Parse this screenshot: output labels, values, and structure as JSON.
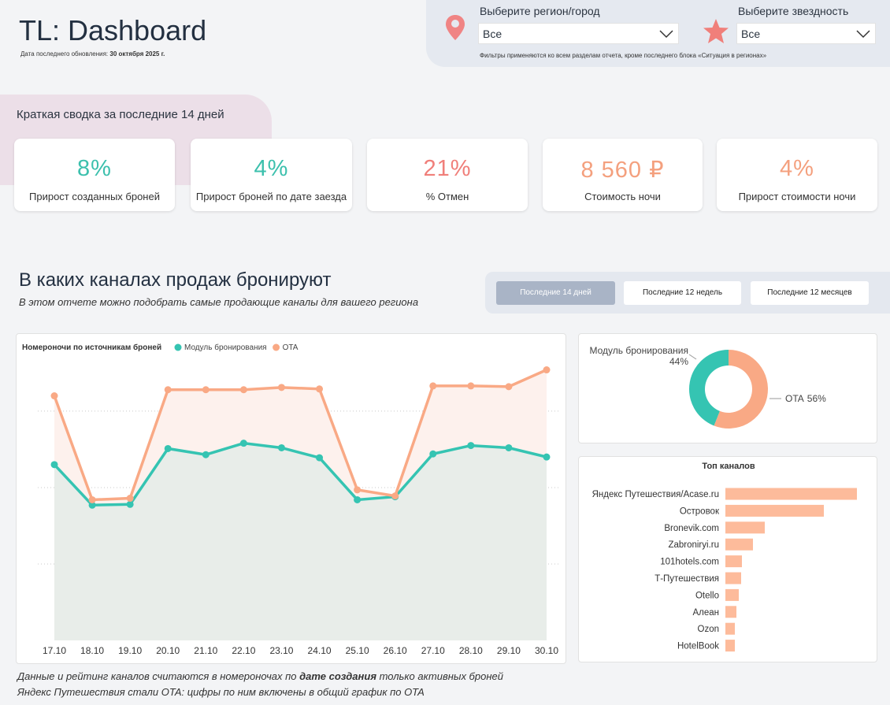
{
  "header": {
    "title": "TL: Dashboard",
    "updated_label": "Дата последнего обновления:",
    "updated_date": "30 октября 2025 г."
  },
  "filters": {
    "region": {
      "label": "Выберите регион/город",
      "value": "Все"
    },
    "stars": {
      "label": "Выберите звездность",
      "value": "Все"
    },
    "note": "Фильтры применяются ко всем разделам отчета, кроме последнего блока «Ситуация в регионах»"
  },
  "summary": {
    "title": "Краткая сводка за последние 14 дней",
    "kpis": [
      {
        "value": "8%",
        "label": "Прирост созданных броней",
        "color": "#3cc0ad"
      },
      {
        "value": "4%",
        "label": "Прирост броней по дате заезда",
        "color": "#3cc0ad"
      },
      {
        "value": "21%",
        "label": "% Отмен",
        "color": "#f07f7a"
      },
      {
        "value": "8 560 ₽",
        "label": "Стоимость ночи",
        "color": "#f4a07e"
      },
      {
        "value": "4%",
        "label": "Прирост стоимости ночи",
        "color": "#f4a07e"
      }
    ]
  },
  "channels": {
    "title": "В каких каналах продаж бронируют",
    "subtitle": "В этом отчете можно подобрать самые продающие каналы для вашего региона",
    "tabs": [
      "Последние 14 дней",
      "Последние 12 недель",
      "Последние 12 месяцев"
    ],
    "active_tab": 0
  },
  "chart_data": [
    {
      "type": "line",
      "title": "Номероночи по источникам броней",
      "categories": [
        "17.10",
        "18.10",
        "19.10",
        "20.10",
        "21.10",
        "22.10",
        "23.10",
        "24.10",
        "25.10",
        "26.10",
        "27.10",
        "28.10",
        "29.10",
        "30.10"
      ],
      "series": [
        {
          "name": "Модуль бронирования",
          "color": "#35c4b2",
          "area_color": "#e8ede9",
          "values": [
            230,
            177,
            178,
            251,
            243,
            258,
            252,
            239,
            184,
            188,
            244,
            255,
            252,
            240
          ]
        },
        {
          "name": "OTA",
          "color": "#f9a985",
          "area_color": "#fdf1ed",
          "values": [
            320,
            184,
            186,
            328,
            328,
            328,
            331,
            329,
            197,
            189,
            333,
            333,
            332,
            354
          ]
        }
      ],
      "ylim": [
        0,
        370
      ],
      "yticks": [
        100,
        200,
        300
      ],
      "grid": true,
      "area": true
    },
    {
      "type": "pie",
      "donut": true,
      "categories": [
        "Модуль бронирования",
        "OTA"
      ],
      "values": [
        44,
        56
      ],
      "value_labels": [
        "44%",
        "56%"
      ],
      "colors": [
        "#35c4b2",
        "#f9a985"
      ]
    },
    {
      "type": "bar",
      "orientation": "horizontal",
      "title": "Топ каналов",
      "categories": [
        "Яндекс Путешествия/Acase.ru",
        "Островок",
        "Bronevik.com",
        "Zabroniryi.ru",
        "101hotels.com",
        "Т-Путешествия",
        "Otello",
        "Алеан",
        "Ozon",
        "HotelBook"
      ],
      "values": [
        167,
        125,
        50,
        35,
        21,
        20,
        17,
        14,
        12,
        12
      ],
      "xlim": [
        0,
        170
      ],
      "color": "#fdbb9b"
    }
  ],
  "footer": {
    "line1": {
      "before": "Данные и рейтинг каналов считаются в номероночах по ",
      "emphasis": "дате создания",
      "after": " только активных броней"
    },
    "line2": "Яндекс Путешествия стали OTA: цифры по ним включены в общий график по OTA"
  }
}
